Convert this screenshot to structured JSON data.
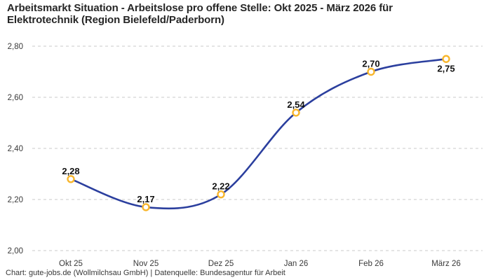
{
  "header": {
    "title_line1": "Arbeitsmarkt Situation - Arbeitslose pro offene Stelle: Okt 2025 - März 2026 für",
    "title_line2": "Elektrotechnik (Region Bielefeld/Paderborn)"
  },
  "chart_data": {
    "type": "line",
    "title": "Arbeitsmarkt Situation - Arbeitslose pro offene Stelle: Okt 2025 - März 2026 für Elektrotechnik (Region Bielefeld/Paderborn)",
    "categories": [
      "Okt 25",
      "Nov 25",
      "Dez 25",
      "Jan 26",
      "Feb 26",
      "März 26"
    ],
    "values": [
      2.28,
      2.17,
      2.22,
      2.54,
      2.7,
      2.75
    ],
    "value_labels": [
      "2,28",
      "2,17",
      "2,22",
      "2,54",
      "2,70",
      "2,75"
    ],
    "ytick_values": [
      2.8,
      2.6,
      2.4,
      2.2,
      2.0
    ],
    "ytick_labels": [
      "2,80",
      "2,60",
      "2,40",
      "2,20",
      "2,00"
    ],
    "ylim": [
      2.0,
      2.8
    ],
    "xlabel": "",
    "ylabel": "",
    "grid": "horizontal-dashed",
    "legend": "none",
    "colors": {
      "line": "#2b3f9e",
      "marker_ring": "#f8b62c",
      "marker_fill": "#ffffff",
      "gridline": "#c9c9c9"
    }
  },
  "footer": {
    "attribution": "Chart: gute-jobs.de (Wollmilchsau GmbH) | Datenquelle: Bundesagentur für Arbeit"
  }
}
